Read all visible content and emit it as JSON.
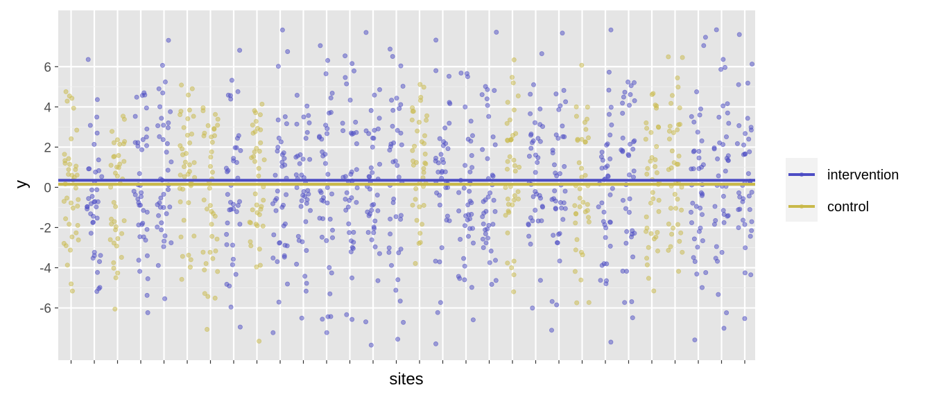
{
  "chart_data": {
    "type": "scatter",
    "title": "",
    "xlabel": "sites",
    "ylabel": "y",
    "ylim": [
      -8.6,
      8.8
    ],
    "yticks": [
      -6,
      -4,
      -2,
      0,
      2,
      4,
      6
    ],
    "grid": true,
    "legend_placement": "right",
    "n_sites": 30,
    "points_per_site": 40,
    "jitter_width": 0.32,
    "series": [
      {
        "name": "intervention",
        "color": "#4D4DC4",
        "mean_line": 0.35,
        "sites": [
          2,
          4,
          5,
          8,
          10,
          11,
          12,
          13,
          14,
          15,
          17,
          18,
          19,
          21,
          22,
          24,
          25,
          28,
          29,
          30
        ],
        "spread_sd": 3.3
      },
      {
        "name": "control",
        "color": "#C9B94A",
        "mean_line": 0.15,
        "sites": [
          1,
          3,
          6,
          7,
          9,
          16,
          20,
          23,
          26,
          27
        ],
        "spread_sd": 3.0
      }
    ]
  }
}
